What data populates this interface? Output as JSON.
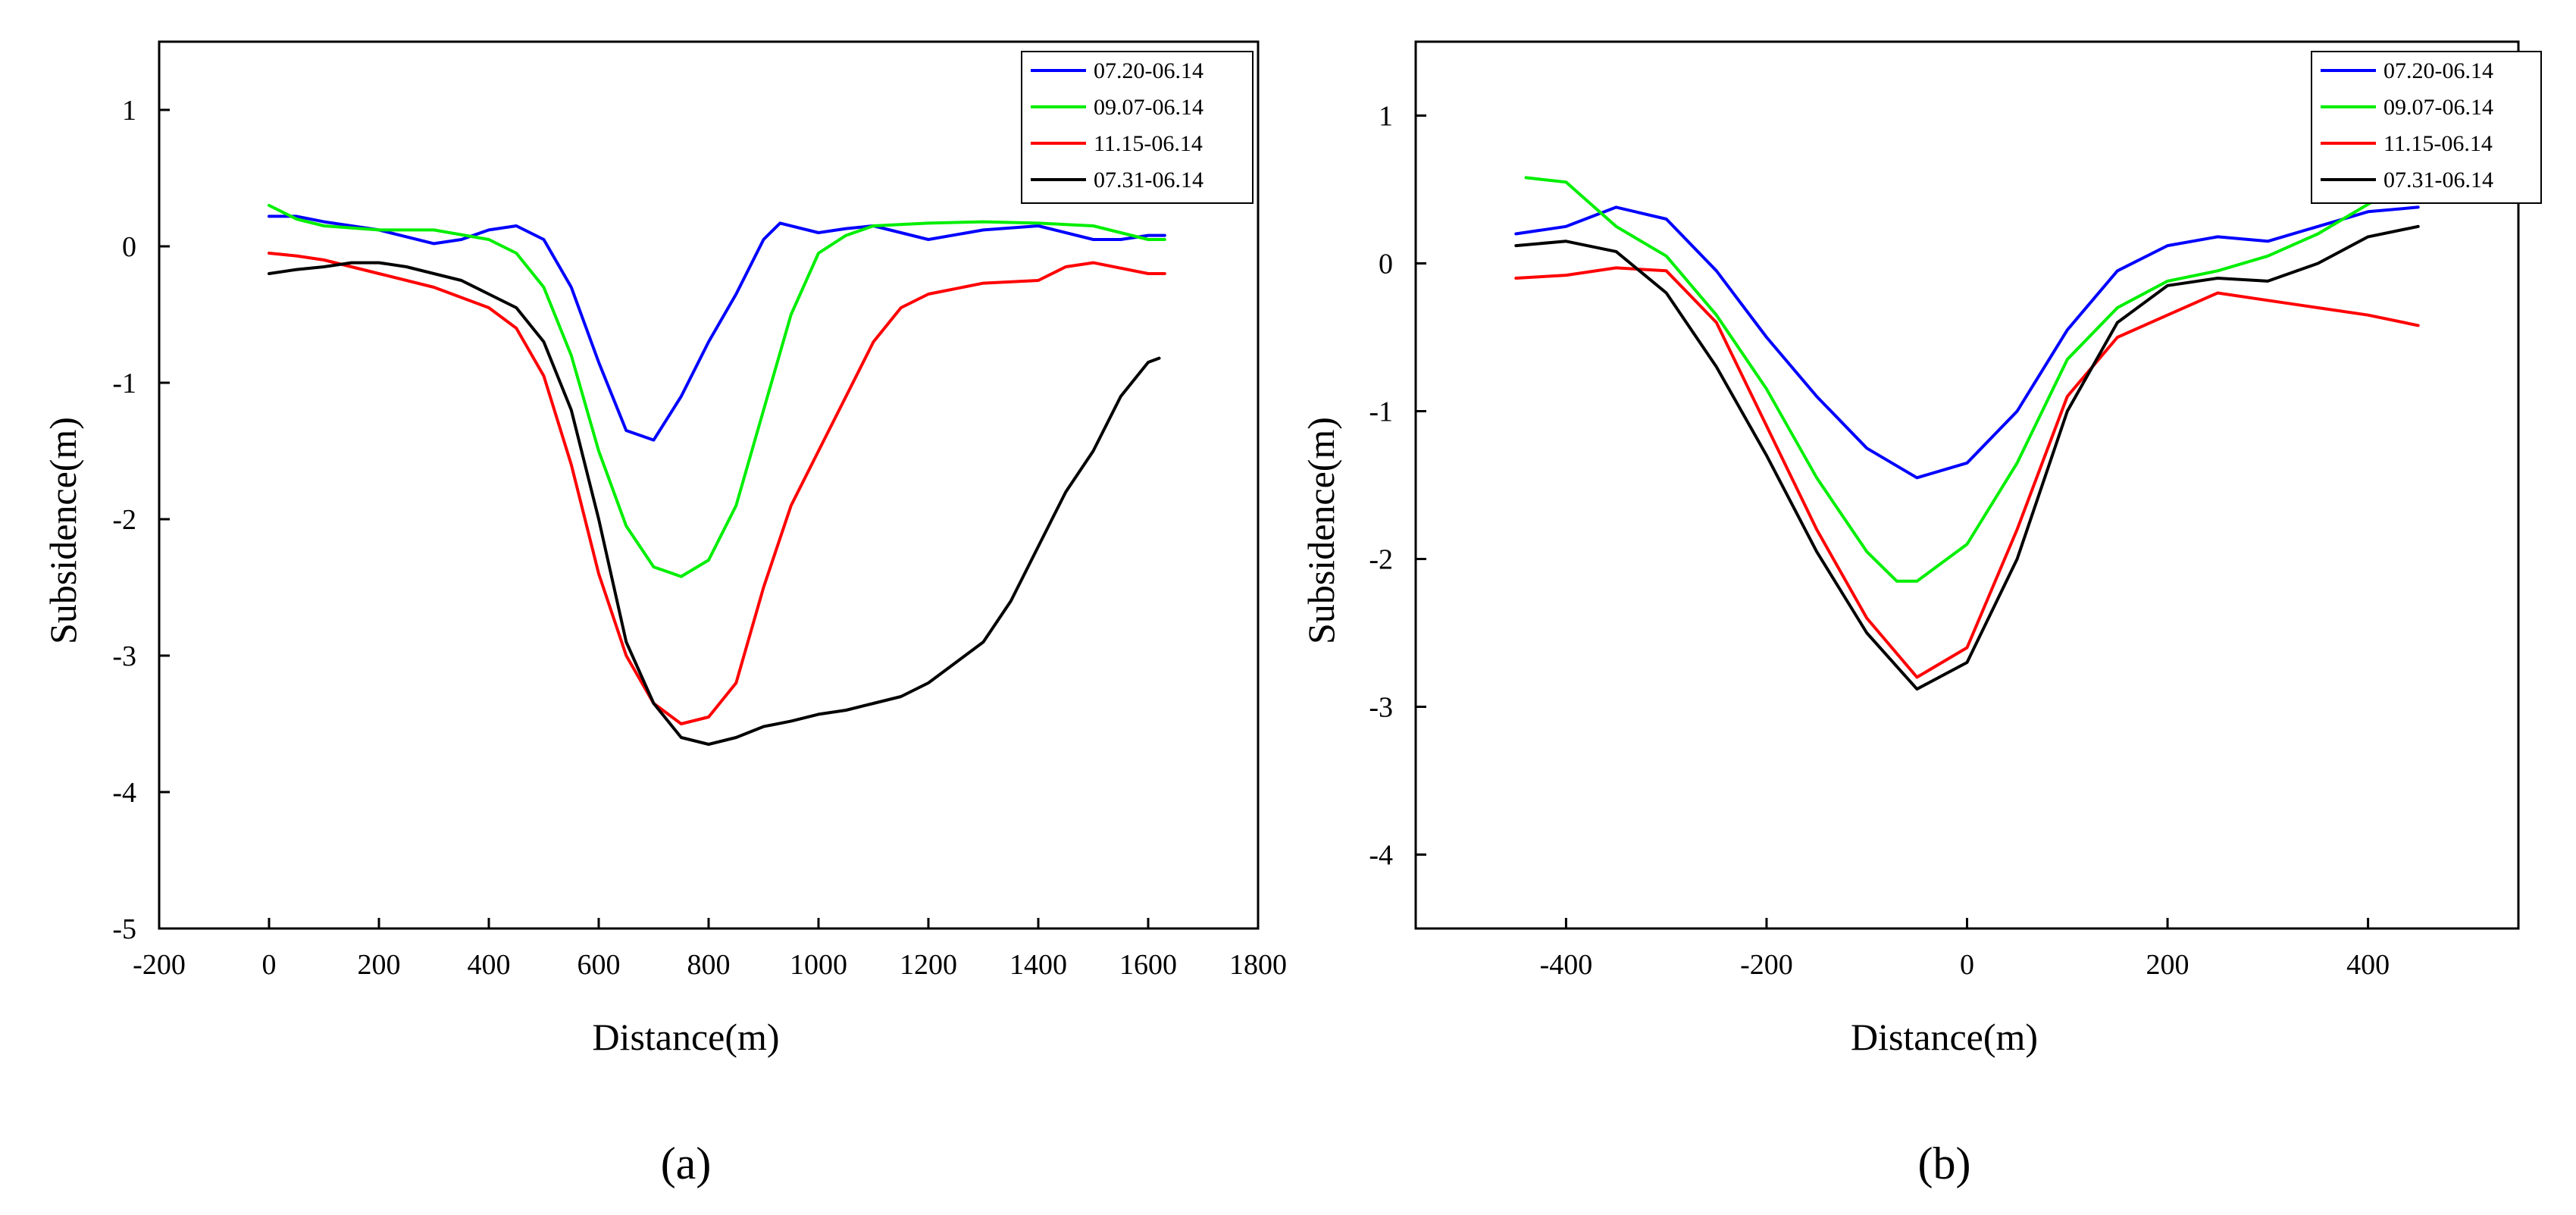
{
  "chart_data": [
    {
      "type": "line",
      "panel_label": "(a)",
      "xlabel": "Distance(m)",
      "ylabel": "Subsidence(m)",
      "xlim": [
        -200,
        1800
      ],
      "ylim": [
        -5,
        1.5
      ],
      "xticks": [
        -200,
        0,
        200,
        400,
        600,
        800,
        1000,
        1200,
        1400,
        1600,
        1800
      ],
      "xtick_labels": [
        "-200",
        "0",
        "200",
        "400",
        "600",
        "800",
        "1000",
        "1200",
        "1400",
        "1600",
        "1800"
      ],
      "yticks": [
        -5,
        -4,
        -3,
        -2,
        -1,
        0,
        1
      ],
      "ytick_labels": [
        "-5",
        "-4",
        "-3",
        "-2",
        "-1",
        "0",
        "1"
      ],
      "legend_position": "top-right",
      "series": [
        {
          "name": "07.20-06.14",
          "color": "#0000ff",
          "x": [
            0,
            50,
            100,
            200,
            300,
            350,
            400,
            450,
            500,
            550,
            600,
            650,
            700,
            750,
            800,
            850,
            900,
            930,
            1000,
            1050,
            1100,
            1200,
            1300,
            1400,
            1500,
            1550,
            1600,
            1630
          ],
          "y": [
            0.22,
            0.22,
            0.18,
            0.12,
            0.02,
            0.05,
            0.12,
            0.15,
            0.05,
            -0.3,
            -0.85,
            -1.35,
            -1.42,
            -1.1,
            -0.7,
            -0.35,
            0.05,
            0.17,
            0.1,
            0.13,
            0.15,
            0.05,
            0.12,
            0.15,
            0.05,
            0.05,
            0.08,
            0.08
          ]
        },
        {
          "name": "09.07-06.14",
          "color": "#00ee00",
          "x": [
            0,
            50,
            100,
            200,
            300,
            400,
            450,
            500,
            550,
            600,
            650,
            700,
            750,
            800,
            850,
            900,
            950,
            1000,
            1050,
            1100,
            1200,
            1300,
            1400,
            1500,
            1550,
            1600,
            1630
          ],
          "y": [
            0.3,
            0.2,
            0.15,
            0.12,
            0.12,
            0.05,
            -0.05,
            -0.3,
            -0.8,
            -1.5,
            -2.05,
            -2.35,
            -2.42,
            -2.3,
            -1.9,
            -1.2,
            -0.5,
            -0.05,
            0.08,
            0.15,
            0.17,
            0.18,
            0.17,
            0.15,
            0.1,
            0.05,
            0.05
          ]
        },
        {
          "name": "11.15-06.14",
          "color": "#ff0000",
          "x": [
            0,
            50,
            100,
            200,
            300,
            400,
            450,
            500,
            550,
            600,
            650,
            700,
            750,
            800,
            850,
            900,
            950,
            1000,
            1050,
            1100,
            1150,
            1200,
            1300,
            1400,
            1450,
            1500,
            1600,
            1630
          ],
          "y": [
            -0.05,
            -0.07,
            -0.1,
            -0.2,
            -0.3,
            -0.45,
            -0.6,
            -0.95,
            -1.6,
            -2.4,
            -3.0,
            -3.35,
            -3.5,
            -3.45,
            -3.2,
            -2.5,
            -1.9,
            -1.5,
            -1.1,
            -0.7,
            -0.45,
            -0.35,
            -0.27,
            -0.25,
            -0.15,
            -0.12,
            -0.2,
            -0.2
          ]
        },
        {
          "name": "07.31-06.14",
          "color": "#000000",
          "x": [
            0,
            50,
            100,
            150,
            200,
            250,
            300,
            350,
            400,
            450,
            500,
            550,
            600,
            650,
            700,
            750,
            800,
            850,
            900,
            950,
            1000,
            1050,
            1100,
            1150,
            1200,
            1250,
            1300,
            1350,
            1400,
            1450,
            1500,
            1550,
            1600,
            1620
          ],
          "y": [
            -0.2,
            -0.17,
            -0.15,
            -0.12,
            -0.12,
            -0.15,
            -0.2,
            -0.25,
            -0.35,
            -0.45,
            -0.7,
            -1.2,
            -2.0,
            -2.9,
            -3.35,
            -3.6,
            -3.65,
            -3.6,
            -3.52,
            -3.48,
            -3.43,
            -3.4,
            -3.35,
            -3.3,
            -3.2,
            -3.05,
            -2.9,
            -2.6,
            -2.2,
            -1.8,
            -1.5,
            -1.1,
            -0.85,
            -0.82
          ]
        }
      ]
    },
    {
      "type": "line",
      "panel_label": "(b)",
      "xlabel": "Distance(m)",
      "ylabel": "Subsidence(m)",
      "xlim": [
        -550,
        550
      ],
      "ylim": [
        -4.5,
        1.5
      ],
      "xticks": [
        -400,
        -200,
        0,
        200,
        400
      ],
      "xtick_labels": [
        "-400",
        "-200",
        "0",
        "200",
        "400"
      ],
      "yticks": [
        -4,
        -3,
        -2,
        -1,
        0,
        1
      ],
      "ytick_labels": [
        "-4",
        "-3",
        "-2",
        "-1",
        "0",
        "1"
      ],
      "legend_position": "top-right",
      "series": [
        {
          "name": "07.20-06.14",
          "color": "#0000ff",
          "x": [
            -450,
            -400,
            -350,
            -300,
            -250,
            -200,
            -150,
            -100,
            -50,
            0,
            50,
            100,
            150,
            200,
            250,
            300,
            350,
            400,
            450
          ],
          "y": [
            0.2,
            0.25,
            0.38,
            0.3,
            -0.05,
            -0.5,
            -0.9,
            -1.25,
            -1.45,
            -1.35,
            -1.0,
            -0.45,
            -0.05,
            0.12,
            0.18,
            0.15,
            0.25,
            0.35,
            0.38
          ]
        },
        {
          "name": "09.07-06.14",
          "color": "#00ee00",
          "x": [
            -440,
            -400,
            -350,
            -300,
            -250,
            -200,
            -150,
            -100,
            -70,
            -50,
            0,
            50,
            100,
            150,
            200,
            250,
            300,
            350,
            400,
            420
          ],
          "y": [
            0.58,
            0.55,
            0.25,
            0.05,
            -0.35,
            -0.85,
            -1.45,
            -1.95,
            -2.15,
            -2.15,
            -1.9,
            -1.35,
            -0.65,
            -0.3,
            -0.12,
            -0.05,
            0.05,
            0.2,
            0.4,
            0.48
          ]
        },
        {
          "name": "11.15-06.14",
          "color": "#ff0000",
          "x": [
            -450,
            -400,
            -350,
            -300,
            -250,
            -200,
            -150,
            -100,
            -50,
            0,
            50,
            100,
            150,
            200,
            250,
            300,
            350,
            400,
            450
          ],
          "y": [
            -0.1,
            -0.08,
            -0.03,
            -0.05,
            -0.4,
            -1.1,
            -1.8,
            -2.4,
            -2.8,
            -2.6,
            -1.8,
            -0.9,
            -0.5,
            -0.35,
            -0.2,
            -0.25,
            -0.3,
            -0.35,
            -0.42
          ]
        },
        {
          "name": "07.31-06.14",
          "color": "#000000",
          "x": [
            -450,
            -400,
            -350,
            -300,
            -250,
            -200,
            -150,
            -100,
            -50,
            0,
            50,
            100,
            150,
            200,
            250,
            300,
            350,
            400,
            450
          ],
          "y": [
            0.12,
            0.15,
            0.08,
            -0.2,
            -0.7,
            -1.3,
            -1.95,
            -2.5,
            -2.88,
            -2.7,
            -2.0,
            -1.0,
            -0.4,
            -0.15,
            -0.1,
            -0.12,
            0.0,
            0.18,
            0.25
          ]
        }
      ]
    }
  ]
}
